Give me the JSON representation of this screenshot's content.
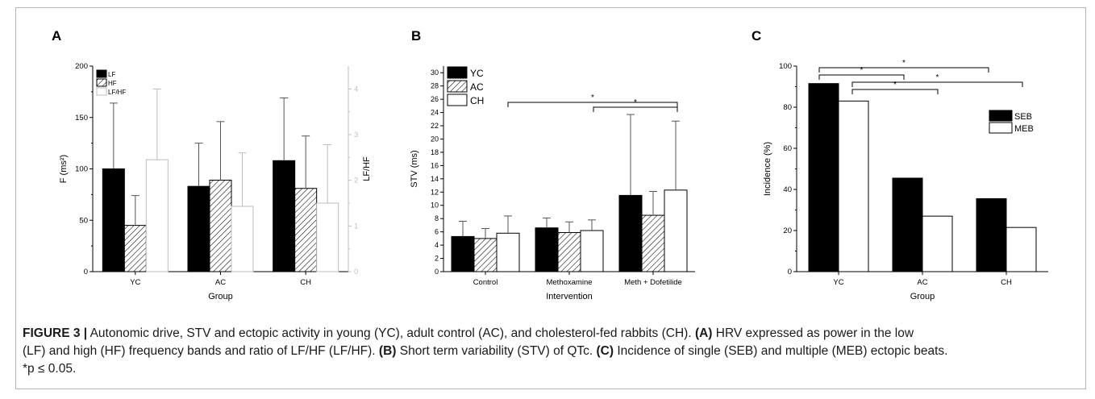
{
  "chart_data": [
    {
      "panel": "A",
      "type": "bar",
      "categories": [
        "YC",
        "AC",
        "CH"
      ],
      "xlabel": "Group",
      "ylabel": "F (ms²)",
      "ylabel_right": "LF/HF",
      "ylim": [
        0,
        200
      ],
      "ylim_right": [
        0,
        4.5
      ],
      "yticks": [
        0,
        50,
        100,
        150,
        200
      ],
      "yticks_right": [
        0,
        1,
        2,
        3,
        4
      ],
      "legend_position": "top-left",
      "series": [
        {
          "name": "LF",
          "values": [
            100,
            83,
            108
          ],
          "errors": [
            64,
            42,
            61
          ],
          "axis": "left",
          "pattern": "solid"
        },
        {
          "name": "HF",
          "values": [
            45,
            89,
            81
          ],
          "errors": [
            29,
            57,
            51
          ],
          "axis": "left",
          "pattern": "hatch"
        },
        {
          "name": "LF/HF",
          "values": [
            2.45,
            1.43,
            1.5
          ],
          "errors": [
            1.55,
            1.17,
            1.28
          ],
          "axis": "right",
          "pattern": "open-grey"
        }
      ]
    },
    {
      "panel": "B",
      "type": "bar",
      "categories": [
        "Control",
        "Methoxamine",
        "Meth + Dofetilide"
      ],
      "xlabel": "Intervention",
      "ylabel": "STV (ms)",
      "ylim": [
        0,
        31
      ],
      "yticks": [
        0,
        2,
        4,
        6,
        8,
        10,
        12,
        14,
        16,
        18,
        20,
        22,
        24,
        26,
        28,
        30
      ],
      "legend_position": "top-left",
      "series": [
        {
          "name": "YC",
          "values": [
            5.3,
            6.6,
            11.5
          ],
          "errors": [
            2.3,
            1.5,
            12.2
          ],
          "pattern": "solid"
        },
        {
          "name": "AC",
          "values": [
            5.0,
            5.9,
            8.5
          ],
          "errors": [
            1.5,
            1.6,
            3.6
          ],
          "pattern": "hatch"
        },
        {
          "name": "CH",
          "values": [
            5.8,
            6.2,
            12.3
          ],
          "errors": [
            2.6,
            1.6,
            10.4
          ],
          "pattern": "open"
        }
      ],
      "annotations": [
        "*",
        "*"
      ]
    },
    {
      "panel": "C",
      "type": "bar",
      "categories": [
        "YC",
        "AC",
        "CH"
      ],
      "xlabel": "Group",
      "ylabel": "Incidence (%)",
      "ylim": [
        0,
        100
      ],
      "yticks": [
        0,
        20,
        40,
        60,
        80,
        100
      ],
      "legend_position": "right",
      "series": [
        {
          "name": "SEB",
          "values": [
            91.5,
            45.5,
            35.5
          ],
          "pattern": "solid"
        },
        {
          "name": "MEB",
          "values": [
            83,
            27,
            21.5
          ],
          "pattern": "open"
        }
      ],
      "annotations": [
        "*",
        "*",
        "*",
        "*"
      ]
    }
  ],
  "caption": {
    "label": "FIGURE 3 |",
    "line1": " Autonomic drive, STV and ectopic activity in young (YC), adult control (AC), and cholesterol-fed rabbits (CH). ",
    "refA": "(A)",
    "line1b": " HRV expressed as power in the low",
    "line2": "(LF) and high (HF) frequency bands and ratio of LF/HF (LF/HF). ",
    "refB": "(B)",
    "line2b": " Short term variability (STV) of QTc. ",
    "refC": "(C)",
    "line2c": " Incidence of single (SEB) and multiple (MEB) ectopic beats.",
    "line3": "*p ≤ 0.05."
  },
  "colors": {
    "bar_dark": "#000000",
    "open_edge_a": "#bdbdbd",
    "right_axis": "#c0c0c0"
  }
}
